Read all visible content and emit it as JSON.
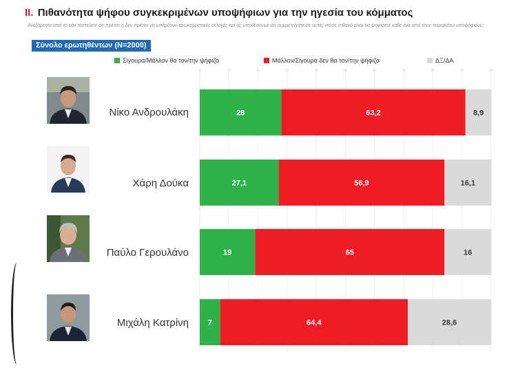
{
  "header": {
    "title_num": "ΙΙ.",
    "title": "Πιθανότητα ψήφου συγκεκριμένων υποψήφιων για την ηγεσία του κόμματος",
    "subtitle": "Ανεξάρτητα από το εάν πιστεύετε ότι πρέπει ή δεν πρέπει να υπάρξουν εσωκομματικές εκλογές και ας υποθέσουμε ότι συμμετείχατε σε αυτές πόσο πιθανό είναι να ψηφίσετε κάθε ένα από τους παρακάτω υποψήφιους;",
    "sample_label": "Σύνολο ερωτηθέντων (Ν=2000)"
  },
  "colors": {
    "green": "#2db34a",
    "red": "#ee1c25",
    "gray": "#dadada"
  },
  "chart_data": {
    "type": "bar",
    "orientation": "horizontal",
    "stacked": true,
    "categories": [
      "Νίκο Ανδρουλάκη",
      "Χάρη Δούκα",
      "Παύλο Γερουλάνο",
      "Μιχάλη Κατρίνη"
    ],
    "series": [
      {
        "name": "Σίγουρα/Μάλλον θα τον/την ψήφιζα",
        "values": [
          28,
          27.1,
          19,
          7
        ],
        "labels": [
          "28",
          "27,1",
          "19",
          "7"
        ]
      },
      {
        "name": "Μάλλον/Σίγουρα δεν θα τον/την ψήφιζα",
        "values": [
          63.2,
          56.9,
          65,
          64.4
        ],
        "labels": [
          "63,2",
          "56,9",
          "65",
          "64,4"
        ]
      },
      {
        "name": "ΔΞ/ΔΑ",
        "values": [
          8.9,
          16.1,
          16,
          28.6
        ],
        "labels": [
          "8,9",
          "16,1",
          "16",
          "28,6"
        ]
      }
    ],
    "xlim": [
      0,
      100
    ],
    "xticks": [
      "0",
      "10",
      "20",
      "30",
      "40",
      "50",
      "60",
      "70",
      "80",
      "90",
      "100"
    ],
    "grid": true,
    "legend": "top"
  }
}
